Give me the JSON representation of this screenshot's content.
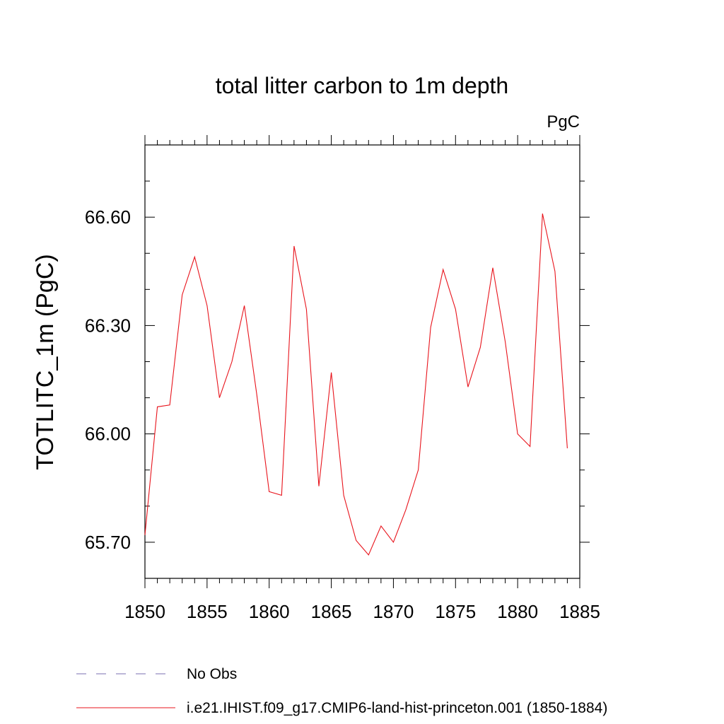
{
  "chart_data": {
    "type": "line",
    "title": "total litter carbon to 1m depth",
    "units_label": "PgC",
    "ylabel": "TOTLITC_1m  (PgC)",
    "xlabel": "",
    "xlim": [
      1850,
      1885
    ],
    "ylim": [
      65.6,
      66.8
    ],
    "x_ticks": [
      1850,
      1855,
      1860,
      1865,
      1870,
      1875,
      1880,
      1885
    ],
    "x_tick_labels": [
      "1850",
      "1855",
      "1860",
      "1865",
      "1870",
      "1875",
      "1880",
      "1885"
    ],
    "y_ticks": [
      65.7,
      66.0,
      66.3,
      66.6
    ],
    "y_tick_labels": [
      "65.70",
      "66.00",
      "66.30",
      "66.60"
    ],
    "series": [
      {
        "name": "i.e21.IHIST.f09_g17.CMIP6-land-hist-princeton.001 (1850-1884)",
        "color": "#e8141c",
        "x": [
          1850,
          1851,
          1852,
          1853,
          1854,
          1855,
          1856,
          1857,
          1858,
          1859,
          1860,
          1861,
          1862,
          1863,
          1864,
          1865,
          1866,
          1867,
          1868,
          1869,
          1870,
          1871,
          1872,
          1873,
          1874,
          1875,
          1876,
          1877,
          1878,
          1879,
          1880,
          1881,
          1882,
          1883,
          1884
        ],
        "y": [
          65.72,
          66.075,
          66.08,
          66.385,
          66.49,
          66.355,
          66.1,
          66.2,
          66.355,
          66.11,
          65.84,
          65.83,
          66.52,
          66.345,
          65.855,
          66.17,
          65.83,
          65.705,
          65.665,
          65.745,
          65.7,
          65.79,
          65.9,
          66.295,
          66.455,
          66.345,
          66.13,
          66.24,
          66.46,
          66.255,
          66.0,
          65.965,
          66.61,
          66.45,
          65.96
        ]
      }
    ],
    "legend": {
      "placement": "bottom-left",
      "entries": [
        {
          "label": "No Obs",
          "color": "#7b6fb0",
          "style": "dashed"
        },
        {
          "label": "i.e21.IHIST.f09_g17.CMIP6-land-hist-princeton.001 (1850-1884)",
          "color": "#e8141c",
          "style": "solid"
        }
      ]
    }
  }
}
